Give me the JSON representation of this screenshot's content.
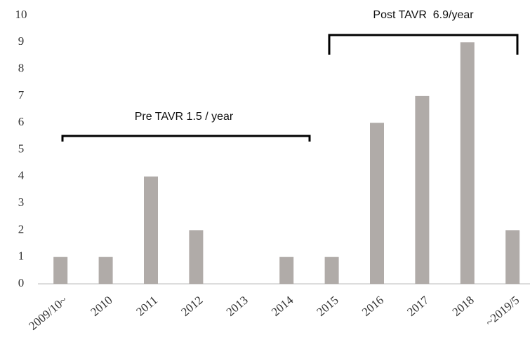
{
  "chart_data": {
    "type": "bar",
    "categories": [
      "2009/10~",
      "2010",
      "2011",
      "2012",
      "2013",
      "2014",
      "2015",
      "2016",
      "2017",
      "2018",
      "~2019/5"
    ],
    "values": [
      1,
      1,
      4,
      2,
      0,
      1,
      1,
      6,
      7,
      9,
      2
    ],
    "color": "#b0aba8",
    "ylim": [
      0,
      10
    ],
    "yticks": [
      0,
      1,
      2,
      3,
      4,
      5,
      6,
      7,
      8,
      9,
      10
    ],
    "grid": false,
    "annotations": [
      "Pre TAVR 1.5 / year",
      "Post TAVR  6.9/year"
    ]
  }
}
